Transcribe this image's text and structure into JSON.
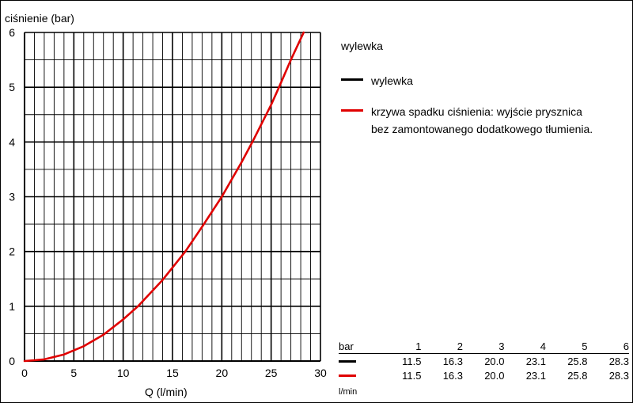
{
  "chart_data": {
    "type": "line",
    "ylabel": "ciśnienie (bar)",
    "xlabel": "Q (l/min)",
    "xlim": [
      0,
      30
    ],
    "ylim": [
      0,
      6
    ],
    "x_ticks": [
      0,
      5,
      10,
      15,
      20,
      25,
      30
    ],
    "y_ticks": [
      0,
      1,
      2,
      3,
      4,
      5,
      6
    ],
    "grid": true,
    "legend_position": "right",
    "legend_title": "wylewka",
    "series": [
      {
        "name": "wylewka",
        "color": "#000000",
        "x": [],
        "y": []
      },
      {
        "name": "krzywa spadku ciśnienia: wyjście prysznica bez zamontowanego dodatkowego tłumienia.",
        "color": "#e00000",
        "x": [
          0,
          2,
          4,
          6,
          8,
          10,
          11.5,
          14,
          16.3,
          18,
          20.0,
          22,
          23.1,
          25,
          25.8,
          27,
          28.3
        ],
        "y": [
          0,
          0.03,
          0.12,
          0.27,
          0.48,
          0.76,
          1,
          1.48,
          2,
          2.45,
          3,
          3.63,
          4,
          4.68,
          5,
          5.5,
          6
        ]
      }
    ],
    "table": {
      "header_label": "bar",
      "header_values": [
        "1",
        "2",
        "3",
        "4",
        "5",
        "6"
      ],
      "unit_label": "l/min",
      "rows": [
        {
          "color": "#000000",
          "values": [
            "11.5",
            "16.3",
            "20.0",
            "23.1",
            "25.8",
            "28.3"
          ]
        },
        {
          "color": "#e00000",
          "values": [
            "11.5",
            "16.3",
            "20.0",
            "23.1",
            "25.8",
            "28.3"
          ]
        }
      ]
    }
  }
}
